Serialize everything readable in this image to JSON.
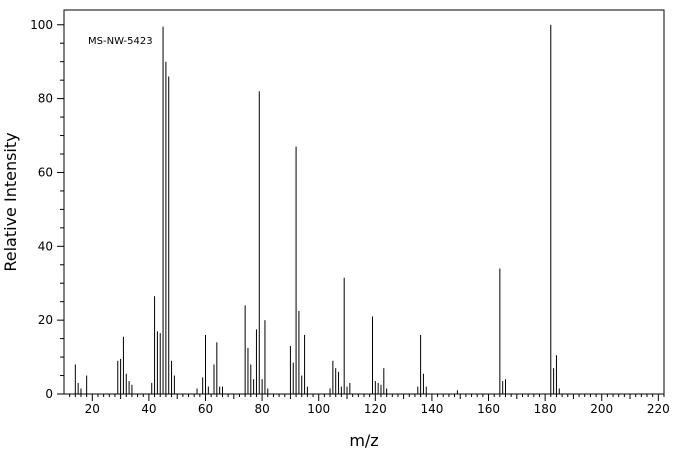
{
  "chart_data": {
    "type": "bar",
    "annotation": "MS-NW-5423",
    "xlabel": "m/z",
    "ylabel": "Relative Intensity",
    "xlim": [
      10,
      222
    ],
    "ylim": [
      0,
      104
    ],
    "x_ticks": [
      20,
      40,
      60,
      80,
      100,
      120,
      140,
      160,
      180,
      200,
      220
    ],
    "y_ticks": [
      0,
      20,
      40,
      60,
      80,
      100
    ],
    "peaks": [
      {
        "x": 14,
        "y": 8
      },
      {
        "x": 15,
        "y": 3
      },
      {
        "x": 16,
        "y": 1.5
      },
      {
        "x": 18,
        "y": 5
      },
      {
        "x": 29,
        "y": 9
      },
      {
        "x": 30,
        "y": 9.5
      },
      {
        "x": 31,
        "y": 15.5
      },
      {
        "x": 32,
        "y": 5.5
      },
      {
        "x": 33,
        "y": 3.5
      },
      {
        "x": 34,
        "y": 2.5
      },
      {
        "x": 41,
        "y": 3
      },
      {
        "x": 42,
        "y": 26.5
      },
      {
        "x": 43,
        "y": 17
      },
      {
        "x": 44,
        "y": 16.5
      },
      {
        "x": 45,
        "y": 99.5
      },
      {
        "x": 46,
        "y": 90
      },
      {
        "x": 47,
        "y": 86
      },
      {
        "x": 48,
        "y": 9
      },
      {
        "x": 49,
        "y": 5
      },
      {
        "x": 57,
        "y": 1.5
      },
      {
        "x": 59,
        "y": 4.5
      },
      {
        "x": 60,
        "y": 16
      },
      {
        "x": 61,
        "y": 2
      },
      {
        "x": 63,
        "y": 8
      },
      {
        "x": 64,
        "y": 14
      },
      {
        "x": 65,
        "y": 2
      },
      {
        "x": 66,
        "y": 2
      },
      {
        "x": 74,
        "y": 24
      },
      {
        "x": 75,
        "y": 12.5
      },
      {
        "x": 76,
        "y": 8
      },
      {
        "x": 77,
        "y": 4
      },
      {
        "x": 78,
        "y": 17.5
      },
      {
        "x": 79,
        "y": 82
      },
      {
        "x": 80,
        "y": 4
      },
      {
        "x": 81,
        "y": 20
      },
      {
        "x": 82,
        "y": 1.5
      },
      {
        "x": 90,
        "y": 13
      },
      {
        "x": 91,
        "y": 8.5
      },
      {
        "x": 92,
        "y": 67
      },
      {
        "x": 93,
        "y": 22.5
      },
      {
        "x": 94,
        "y": 5
      },
      {
        "x": 95,
        "y": 16
      },
      {
        "x": 96,
        "y": 2
      },
      {
        "x": 104,
        "y": 1.5
      },
      {
        "x": 105,
        "y": 9
      },
      {
        "x": 106,
        "y": 7
      },
      {
        "x": 107,
        "y": 6
      },
      {
        "x": 108,
        "y": 2
      },
      {
        "x": 109,
        "y": 31.5
      },
      {
        "x": 110,
        "y": 2
      },
      {
        "x": 111,
        "y": 3
      },
      {
        "x": 119,
        "y": 21
      },
      {
        "x": 120,
        "y": 3.5
      },
      {
        "x": 121,
        "y": 3
      },
      {
        "x": 122,
        "y": 2.5
      },
      {
        "x": 123,
        "y": 7
      },
      {
        "x": 124,
        "y": 1.5
      },
      {
        "x": 135,
        "y": 2
      },
      {
        "x": 136,
        "y": 16
      },
      {
        "x": 137,
        "y": 5.5
      },
      {
        "x": 138,
        "y": 2
      },
      {
        "x": 149,
        "y": 1
      },
      {
        "x": 164,
        "y": 34
      },
      {
        "x": 165,
        "y": 3.5
      },
      {
        "x": 166,
        "y": 4
      },
      {
        "x": 182,
        "y": 100
      },
      {
        "x": 183,
        "y": 7
      },
      {
        "x": 184,
        "y": 10.5
      },
      {
        "x": 185,
        "y": 1.5
      }
    ]
  }
}
